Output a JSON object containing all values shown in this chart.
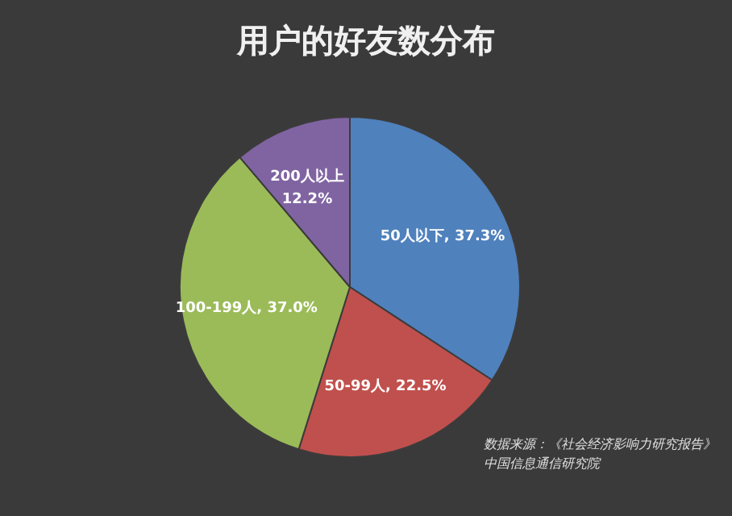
{
  "chart_data": {
    "type": "pie",
    "title": "用户的好友数分布",
    "categories": [
      "50人以下",
      "50-99人",
      "100-199人",
      "200人以上"
    ],
    "values": [
      37.3,
      22.5,
      37.0,
      12.2
    ],
    "value_labels": [
      "37.3%",
      "22.5%",
      "37.0%",
      "12.2%"
    ],
    "colors": [
      "#4f81bd",
      "#c0504d",
      "#9bbb59",
      "#8064a2"
    ],
    "legend": false,
    "annotations": [
      "数据来源：《社会经济影响力研究报告》",
      "中国信息通信研究院"
    ]
  }
}
